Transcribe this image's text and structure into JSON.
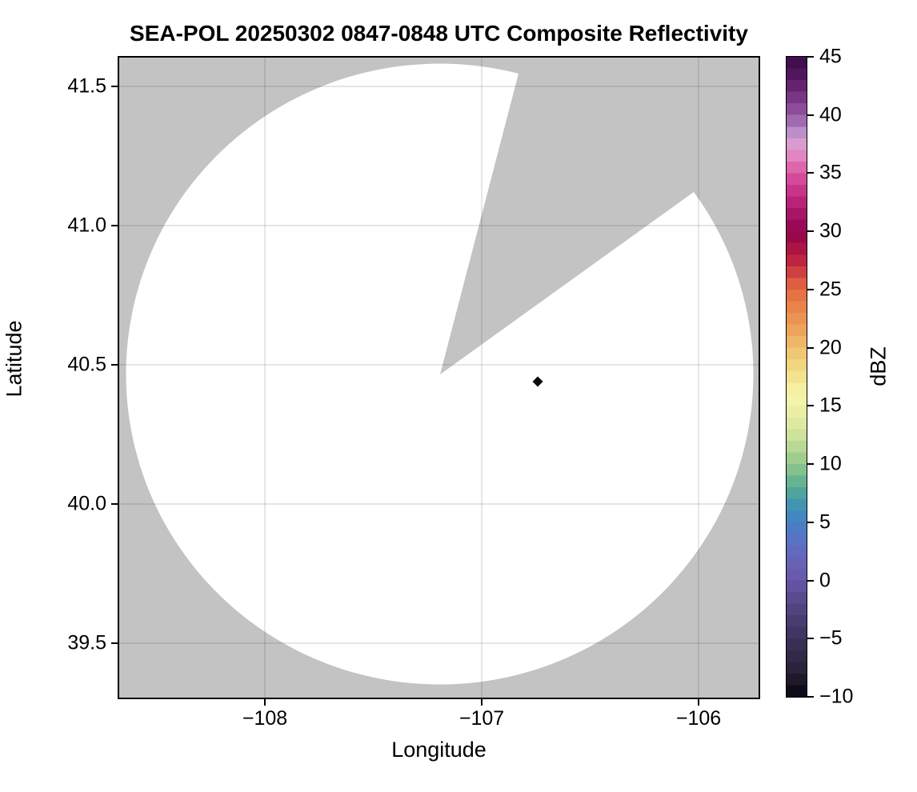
{
  "title": "SEA-POL 20250302 0847-0848 UTC Composite Reflectivity",
  "axes": {
    "xlabel": "Longitude",
    "ylabel": "Latitude",
    "x_ticks": [
      "−108",
      "−107",
      "−106"
    ],
    "y_ticks": [
      "41.5",
      "41.0",
      "40.5",
      "40.0",
      "39.5"
    ]
  },
  "colorbar": {
    "label": "dBZ",
    "min": -10,
    "max": 45,
    "ticks": [
      "45",
      "40",
      "35",
      "30",
      "25",
      "20",
      "15",
      "10",
      "5",
      "0",
      "−5",
      "−10"
    ],
    "step_dbz": 1,
    "stops": [
      {
        "v": 45,
        "c": "#380a46"
      },
      {
        "v": 43,
        "c": "#5c1a66"
      },
      {
        "v": 41,
        "c": "#833f8e"
      },
      {
        "v": 40,
        "c": "#9659a4"
      },
      {
        "v": 39,
        "c": "#a97bbb"
      },
      {
        "v": 38,
        "c": "#cfa3d6"
      },
      {
        "v": 37,
        "c": "#e094c6"
      },
      {
        "v": 36,
        "c": "#e277b6"
      },
      {
        "v": 35,
        "c": "#d954a2"
      },
      {
        "v": 33,
        "c": "#c12a80"
      },
      {
        "v": 31,
        "c": "#9e0e5e"
      },
      {
        "v": 30,
        "c": "#91054e"
      },
      {
        "v": 29,
        "c": "#a00d45"
      },
      {
        "v": 28,
        "c": "#b51a40"
      },
      {
        "v": 27,
        "c": "#c52f44"
      },
      {
        "v": 26,
        "c": "#d8503f"
      },
      {
        "v": 25,
        "c": "#e66a40"
      },
      {
        "v": 23,
        "c": "#ea8b4e"
      },
      {
        "v": 21,
        "c": "#edac5e"
      },
      {
        "v": 20,
        "c": "#efc06d"
      },
      {
        "v": 18,
        "c": "#f2dc85"
      },
      {
        "v": 16,
        "c": "#f7f5ac"
      },
      {
        "v": 14,
        "c": "#e6eda2"
      },
      {
        "v": 12,
        "c": "#c5de97"
      },
      {
        "v": 10,
        "c": "#93c78b"
      },
      {
        "v": 8,
        "c": "#58ad94"
      },
      {
        "v": 7,
        "c": "#479ba8"
      },
      {
        "v": 6,
        "c": "#3f8cba"
      },
      {
        "v": 5,
        "c": "#4680c5"
      },
      {
        "v": 3,
        "c": "#5e6ec3"
      },
      {
        "v": 1,
        "c": "#6a5eb2"
      },
      {
        "v": 0,
        "c": "#6656a8"
      },
      {
        "v": -2,
        "c": "#544787"
      },
      {
        "v": -4,
        "c": "#433969"
      },
      {
        "v": -6,
        "c": "#342c4e"
      },
      {
        "v": -8,
        "c": "#252035"
      },
      {
        "v": -10,
        "c": "#06050e"
      }
    ]
  },
  "chart_data": {
    "type": "heatmap",
    "title": "SEA-POL 20250302 0847-0848 UTC Composite Reflectivity",
    "xlabel": "Longitude",
    "ylabel": "Latitude",
    "xlim": [
      -108.67,
      -105.72
    ],
    "ylim": [
      39.3,
      41.6
    ],
    "x_tick_values": [
      -108,
      -107,
      -106
    ],
    "y_tick_values": [
      39.5,
      40.0,
      40.5,
      41.0,
      41.5
    ],
    "grid": true,
    "colorbar_label": "dBZ",
    "colorbar_range": [
      -10,
      45
    ],
    "colorbar_tick_values": [
      45,
      40,
      35,
      30,
      25,
      20,
      15,
      10,
      5,
      0,
      -5,
      -10
    ],
    "no_data_color": "#c3c3c3",
    "coverage_fill_color": "#ffffff",
    "radar": {
      "name": "SEA-POL",
      "longitude": -107.19,
      "latitude": 40.47,
      "coverage_radius_deg_lon": 1.45,
      "coverage_radius_deg_lat": 1.12,
      "blocked_sector_azimuth_deg": [
        14.5,
        54.0
      ]
    },
    "echoes": [
      {
        "longitude": -106.74,
        "latitude": 40.44,
        "value_dbz": -10,
        "marker": "diamond",
        "color": "#0a0a0a"
      }
    ]
  }
}
